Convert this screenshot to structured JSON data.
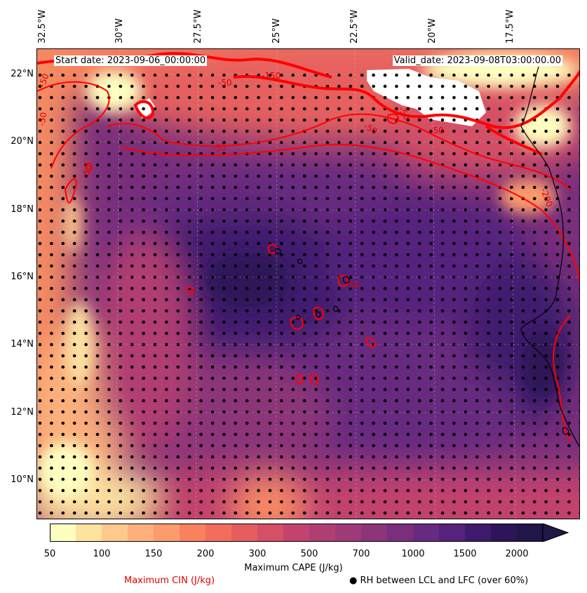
{
  "map": {
    "start_date": "Start date: 2023-09-06_00:00:00",
    "valid_date": "Valid_date: 2023-09-08T03:00:00.00",
    "lon_ticks": [
      "32.5°W",
      "30°W",
      "27.5°W",
      "25°W",
      "22.5°W",
      "20°W",
      "17.5°W"
    ],
    "lat_ticks": [
      "22°N",
      "20°N",
      "18°N",
      "16°N",
      "14°N",
      "12°N",
      "10°N"
    ],
    "cin_contour_labels": [
      "-50",
      "-50",
      "-50",
      "-50",
      "-50",
      "-50",
      "-50",
      "-150",
      "-50",
      "-50",
      "-200"
    ],
    "contour_color": "#ff0000",
    "coastline_color": "#000000"
  },
  "colorbar": {
    "label": "Maximum CAPE (J/kg)",
    "ticks": [
      "50",
      "100",
      "150",
      "200",
      "300",
      "500",
      "700",
      "1000",
      "1500",
      "2000"
    ],
    "colors": [
      "#fdfec0",
      "#fde2a0",
      "#fec98d",
      "#feb07c",
      "#fc9b6c",
      "#fa815f",
      "#f26d5b",
      "#e65d5f",
      "#d54f66",
      "#c2436e",
      "#b13e73",
      "#9e3a78",
      "#8c3579",
      "#7a2f7c",
      "#682a80",
      "#55227e",
      "#3f1a6e",
      "#2d1559",
      "#201648"
    ]
  },
  "legend": {
    "cin_label": "Maximum CIN (J/kg)",
    "rh_label": "● RH between LCL and LFC (over 60%)"
  }
}
